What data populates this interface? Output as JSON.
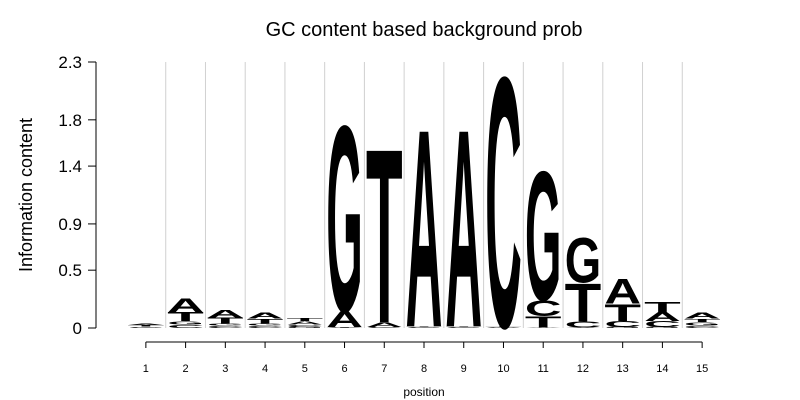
{
  "chart_data": {
    "type": "logo",
    "title": "GC content based background prob",
    "x_label": "position",
    "y_label": "Information content",
    "x": [
      1,
      2,
      3,
      4,
      5,
      6,
      7,
      8,
      9,
      10,
      11,
      12,
      13,
      14,
      15
    ],
    "xlim": [
      0.5,
      15.5
    ],
    "xticks": [
      1,
      2,
      3,
      4,
      5,
      6,
      7,
      8,
      9,
      10,
      11,
      12,
      13,
      14,
      15
    ],
    "ylim": [
      0,
      2.3
    ],
    "yticks": [
      0,
      0.5,
      0.9,
      1.4,
      1.8,
      2.3
    ],
    "grid": true,
    "series": [
      {
        "name": "A",
        "color": "#cc1130",
        "values": [
          0.012,
          0.12,
          0.07,
          0.05,
          0.03,
          0.14,
          0.04,
          1.76,
          1.76,
          0.005,
          0.005,
          0.005,
          0.22,
          0.08,
          0.05
        ]
      },
      {
        "name": "C",
        "color": "#f8a04f",
        "values": [
          0.008,
          0.03,
          0.02,
          0.02,
          0.02,
          0.005,
          0.005,
          0.005,
          0.005,
          2.29,
          0.14,
          0.05,
          0.05,
          0.05,
          0.02
        ]
      },
      {
        "name": "G",
        "color": "#a1d991",
        "values": [
          0.006,
          0.03,
          0.02,
          0.02,
          0.01,
          1.7,
          0.005,
          0.005,
          0.005,
          0.005,
          1.18,
          0.41,
          0.01,
          0.01,
          0.03
        ]
      },
      {
        "name": "T",
        "color": "#2270b0",
        "values": [
          0.01,
          0.08,
          0.05,
          0.04,
          0.03,
          0.005,
          1.55,
          0.005,
          0.005,
          0.005,
          0.1,
          0.34,
          0.15,
          0.09,
          0.03
        ]
      }
    ]
  }
}
